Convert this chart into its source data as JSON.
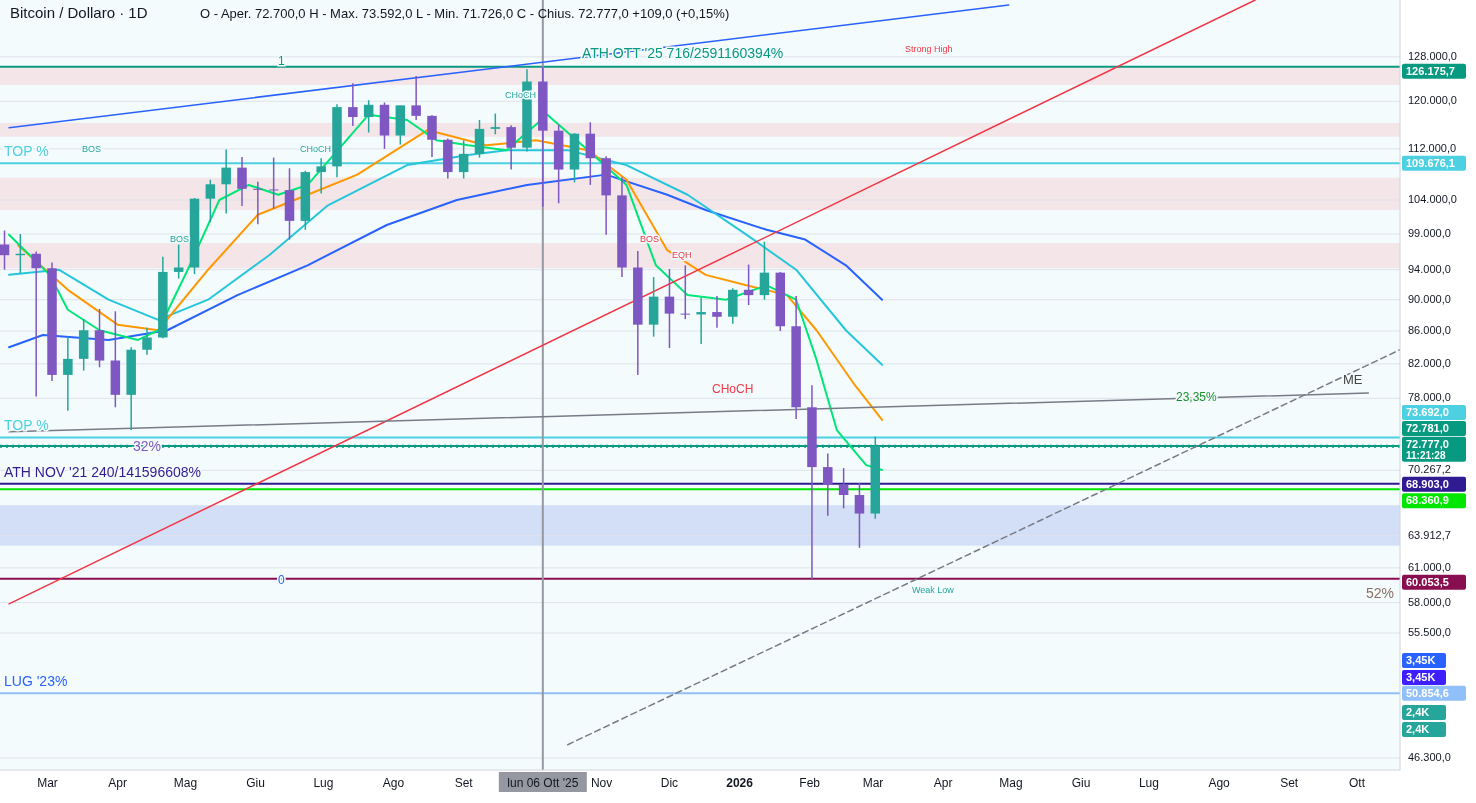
{
  "chart_data": {
    "type": "candlestick",
    "title": "Bitcoin / Dollaro · 1D",
    "subtitle": "O - Aper. 72.700,0  H - Max. 73.592,0  L - Min. 71.726,0  C - Chius. 72.777,0  +109,0 (+0,15%)",
    "x": [
      "2025-02-10",
      "2025-02-17",
      "2025-02-24",
      "2025-03-03",
      "2025-03-10",
      "2025-03-17",
      "2025-03-24",
      "2025-03-31",
      "2025-04-07",
      "2025-04-14",
      "2025-04-21",
      "2025-04-28",
      "2025-05-05",
      "2025-05-12",
      "2025-05-19",
      "2025-05-26",
      "2025-06-02",
      "2025-06-09",
      "2025-06-16",
      "2025-06-23",
      "2025-06-30",
      "2025-07-07",
      "2025-07-14",
      "2025-07-21",
      "2025-07-28",
      "2025-08-04",
      "2025-08-11",
      "2025-08-18",
      "2025-08-25",
      "2025-09-01",
      "2025-09-08",
      "2025-09-15",
      "2025-09-22",
      "2025-09-29",
      "2025-10-06",
      "2025-10-13",
      "2025-10-20",
      "2025-10-27",
      "2025-11-03",
      "2025-11-10",
      "2025-11-17",
      "2025-11-24",
      "2025-12-01",
      "2025-12-08",
      "2025-12-15",
      "2025-12-22",
      "2025-12-29",
      "2026-01-05",
      "2026-01-12",
      "2026-01-19",
      "2026-01-26",
      "2026-02-02",
      "2026-02-09",
      "2026-02-16",
      "2026-02-23",
      "2026-03-02"
    ],
    "ohlc": [
      [
        97500,
        99500,
        94000,
        96000
      ],
      [
        96000,
        99000,
        93500,
        96200
      ],
      [
        96200,
        96500,
        78200,
        94200
      ],
      [
        94200,
        95000,
        80000,
        80700
      ],
      [
        80700,
        85300,
        76600,
        82600
      ],
      [
        82600,
        87500,
        81200,
        86100
      ],
      [
        86100,
        88800,
        81600,
        82400
      ],
      [
        82400,
        88500,
        77000,
        78400
      ],
      [
        78400,
        84000,
        74500,
        83700
      ],
      [
        83700,
        86400,
        83100,
        85200
      ],
      [
        85200,
        95800,
        85100,
        93700
      ],
      [
        93700,
        97500,
        92800,
        94300
      ],
      [
        94300,
        104300,
        93400,
        104200
      ],
      [
        104200,
        107100,
        100700,
        106400
      ],
      [
        106400,
        111900,
        102000,
        109000
      ],
      [
        109000,
        110700,
        103100,
        105700
      ],
      [
        105700,
        106800,
        100400,
        105600
      ],
      [
        105600,
        110600,
        102700,
        105500
      ],
      [
        105500,
        108900,
        98200,
        100900
      ],
      [
        100900,
        108500,
        99600,
        108300
      ],
      [
        108300,
        110500,
        105000,
        109200
      ],
      [
        109200,
        119500,
        107500,
        119000
      ],
      [
        119000,
        123200,
        115800,
        117300
      ],
      [
        117300,
        120200,
        114700,
        119400
      ],
      [
        119400,
        119800,
        112000,
        114200
      ],
      [
        114200,
        119300,
        112700,
        119300
      ],
      [
        119300,
        124500,
        116800,
        117500
      ],
      [
        117500,
        117600,
        110700,
        113500
      ],
      [
        113500,
        113700,
        107300,
        108300
      ],
      [
        108300,
        113400,
        107300,
        111200
      ],
      [
        111200,
        116800,
        110600,
        115300
      ],
      [
        115300,
        117900,
        114400,
        115600
      ],
      [
        115600,
        115900,
        108700,
        112200
      ],
      [
        112200,
        125700,
        111600,
        123500
      ],
      [
        123500,
        126200,
        103000,
        115000
      ],
      [
        115000,
        116000,
        103500,
        108700
      ],
      [
        108700,
        114600,
        106700,
        114500
      ],
      [
        114500,
        116400,
        106300,
        110500
      ],
      [
        110500,
        110800,
        98900,
        104700
      ],
      [
        104700,
        107500,
        93000,
        94300
      ],
      [
        94300,
        96600,
        80700,
        86800
      ],
      [
        86800,
        93000,
        85300,
        90400
      ],
      [
        90400,
        94100,
        83900,
        88200
      ],
      [
        88200,
        94600,
        87500,
        88100
      ],
      [
        88100,
        90300,
        84400,
        88400
      ],
      [
        88400,
        90500,
        86400,
        87800
      ],
      [
        87800,
        91500,
        86900,
        91300
      ],
      [
        91300,
        94700,
        89300,
        90600
      ],
      [
        90600,
        97900,
        90000,
        93600
      ],
      [
        93600,
        93700,
        86000,
        86600
      ],
      [
        86600,
        90500,
        75700,
        77000
      ],
      [
        77000,
        79500,
        60000,
        70600
      ],
      [
        70600,
        72000,
        65800,
        68800
      ],
      [
        68800,
        70500,
        66500,
        67800
      ],
      [
        67800,
        69000,
        62800,
        66000
      ],
      [
        66000,
        73800,
        65500,
        72777
      ]
    ],
    "colors": [
      "#7e57c2",
      "#26a69a",
      "#7e57c2",
      "#7e57c2",
      "#26a69a",
      "#26a69a",
      "#7e57c2",
      "#7e57c2",
      "#26a69a",
      "#26a69a",
      "#26a69a",
      "#26a69a",
      "#26a69a",
      "#26a69a",
      "#26a69a",
      "#7e57c2",
      "#7e57c2",
      "#7e57c2",
      "#7e57c2",
      "#26a69a",
      "#26a69a",
      "#26a69a",
      "#7e57c2",
      "#26a69a",
      "#7e57c2",
      "#26a69a",
      "#7e57c2",
      "#7e57c2",
      "#7e57c2",
      "#26a69a",
      "#26a69a",
      "#26a69a",
      "#7e57c2",
      "#26a69a",
      "#7e57c2",
      "#7e57c2",
      "#26a69a",
      "#7e57c2",
      "#7e57c2",
      "#7e57c2",
      "#7e57c2",
      "#26a69a",
      "#7e57c2",
      "#7e57c2",
      "#26a69a",
      "#7e57c2",
      "#26a69a",
      "#7e57c2",
      "#26a69a",
      "#7e57c2",
      "#7e57c2",
      "#7e57c2",
      "#7e57c2",
      "#7e57c2",
      "#7e57c2",
      "#26a69a"
    ],
    "series": [
      {
        "type": "line",
        "color": "#2962ff",
        "x": [
          "2025-02-12",
          "2025-02-27",
          "2025-03-28",
          "2025-04-23",
          "2025-05-24",
          "2025-06-24",
          "2025-07-29",
          "2025-08-29",
          "2025-09-29",
          "2025-11-03",
          "2025-11-30",
          "2025-12-17",
          "2026-01-13",
          "2026-01-30",
          "2026-02-17",
          "2026-03-05"
        ],
        "values": [
          84000,
          85500,
          84900,
          86100,
          90600,
          94600,
          100300,
          104000,
          106300,
          107900,
          104800,
          102500,
          99600,
          98200,
          94600,
          90000
        ]
      },
      {
        "type": "line",
        "color": "#26c6da",
        "x": [
          "2025-02-12",
          "2025-03-06",
          "2025-03-28",
          "2025-04-19",
          "2025-05-11",
          "2025-06-07",
          "2025-07-03",
          "2025-08-07",
          "2025-09-03",
          "2025-09-20",
          "2025-10-17",
          "2025-11-12",
          "2025-12-09",
          "2026-01-04",
          "2026-01-26",
          "2026-02-17",
          "2026-03-05"
        ],
        "values": [
          93300,
          94000,
          90000,
          87400,
          90000,
          96000,
          103200,
          109400,
          111000,
          111800,
          111800,
          109400,
          104800,
          98900,
          94000,
          86100,
          81900
        ]
      },
      {
        "type": "line",
        "color": "#ff9800",
        "x": [
          "2025-02-16",
          "2025-03-10",
          "2025-04-01",
          "2025-04-19",
          "2025-05-11",
          "2025-06-02",
          "2025-06-24",
          "2025-07-16",
          "2025-08-16",
          "2025-09-11",
          "2025-10-03",
          "2025-10-26",
          "2025-11-12",
          "2025-11-30",
          "2025-12-17",
          "2026-01-04",
          "2026-01-22",
          "2026-02-04",
          "2026-02-21",
          "2026-03-05"
        ],
        "values": [
          97400,
          91300,
          86800,
          86100,
          94000,
          101800,
          104800,
          107900,
          115100,
          112600,
          113400,
          111800,
          107100,
          96700,
          93300,
          91900,
          90600,
          86100,
          79500,
          75600
        ]
      },
      {
        "type": "line",
        "color": "#00e676",
        "x": [
          "2025-02-12",
          "2025-03-02",
          "2025-03-10",
          "2025-03-24",
          "2025-04-10",
          "2025-04-19",
          "2025-05-02",
          "2025-05-16",
          "2025-05-29",
          "2025-06-11",
          "2025-06-24",
          "2025-07-21",
          "2025-08-07",
          "2025-08-20",
          "2025-09-03",
          "2025-09-20",
          "2025-10-08",
          "2025-10-26",
          "2025-11-12",
          "2025-11-25",
          "2025-12-09",
          "2025-12-26",
          "2026-01-13",
          "2026-01-26",
          "2026-02-04",
          "2026-02-13",
          "2026-02-26",
          "2026-03-05"
        ],
        "values": [
          98900,
          93300,
          88700,
          86100,
          84900,
          86100,
          94000,
          104000,
          106300,
          104800,
          106300,
          117700,
          116800,
          113400,
          112600,
          111800,
          117700,
          111800,
          106300,
          94600,
          90600,
          90000,
          91900,
          90000,
          82500,
          74500,
          70800,
          70300
        ]
      },
      {
        "type": "line",
        "color": "#2962ff",
        "x": [
          "2025-02-12",
          "2026-04-30"
        ],
        "values": [
          115500,
          138000
        ]
      },
      {
        "type": "line",
        "color": "#f23645",
        "x": [
          "2025-02-12",
          "2026-08-17"
        ],
        "values": [
          57900,
          139000
        ]
      },
      {
        "type": "line",
        "color": "#787b86",
        "x": [
          "2025-02-12",
          "2026-10-06"
        ],
        "values": [
          74300,
          78600
        ]
      },
      {
        "type": "line",
        "color": "#787b86",
        "line_style": "dashed",
        "x": [
          "2025-10-17",
          "2026-10-20"
        ],
        "values": [
          47200,
          83700
        ]
      }
    ],
    "xlim": [
      "2025-02-08",
      "2026-10-20"
    ],
    "xticks": [
      {
        "value": "2025-03-01",
        "label": "Mar"
      },
      {
        "value": "2025-04-01",
        "label": "Apr"
      },
      {
        "value": "2025-05-01",
        "label": "Mag"
      },
      {
        "value": "2025-06-01",
        "label": "Giu"
      },
      {
        "value": "2025-07-01",
        "label": "Lug"
      },
      {
        "value": "2025-08-01",
        "label": "Ago"
      },
      {
        "value": "2025-09-01",
        "label": "Set"
      },
      {
        "value": "2025-11-01",
        "label": "Nov"
      },
      {
        "value": "2025-12-01",
        "label": "Dic"
      },
      {
        "value": "2026-01-01",
        "label": "2026"
      },
      {
        "value": "2026-02-01",
        "label": "Feb"
      },
      {
        "value": "2026-03-01",
        "label": "Mar"
      },
      {
        "value": "2026-04-01",
        "label": "Apr"
      },
      {
        "value": "2026-05-01",
        "label": "Mag"
      },
      {
        "value": "2026-06-01",
        "label": "Giu"
      },
      {
        "value": "2026-07-01",
        "label": "Lug"
      },
      {
        "value": "2026-08-01",
        "label": "Ago"
      },
      {
        "value": "2026-09-01",
        "label": "Set"
      },
      {
        "value": "2026-10-01",
        "label": "Ott"
      }
    ],
    "ylim": [
      45500,
      139000
    ],
    "yticks": [
      {
        "value": 128000,
        "label": "128.000,0"
      },
      {
        "value": 120000,
        "label": "120.000,0"
      },
      {
        "value": 112000,
        "label": "112.000,0"
      },
      {
        "value": 104000,
        "label": "104.000,0"
      },
      {
        "value": 99000,
        "label": "99.000,0"
      },
      {
        "value": 94000,
        "label": "94.000,0"
      },
      {
        "value": 90000,
        "label": "90.000,0"
      },
      {
        "value": 86000,
        "label": "86.000,0"
      },
      {
        "value": 82000,
        "label": "82.000,0"
      },
      {
        "value": 78000,
        "label": "78.000,0"
      },
      {
        "value": 70267.2,
        "label": "70.267,2"
      },
      {
        "value": 63912.7,
        "label": "63.912,7"
      },
      {
        "value": 61000,
        "label": "61.000,0"
      },
      {
        "value": 58000,
        "label": "58.000,0"
      },
      {
        "value": 55500,
        "label": "55.500,0"
      },
      {
        "value": 46300,
        "label": "46.300,0"
      }
    ],
    "log": true,
    "grid": "y",
    "ref_lines": [
      {
        "axis": "y",
        "value": 126175.7,
        "label": "126.175,7",
        "color": "#089981"
      },
      {
        "axis": "y",
        "value": 109676.1,
        "label": "109.676,1",
        "color": "#4dd0e1"
      },
      {
        "axis": "y",
        "value": 73692,
        "label": "73.692,0",
        "color": "#4dd0e1"
      },
      {
        "axis": "y",
        "value": 72781,
        "label": "72.781,0",
        "color": "#089981"
      },
      {
        "axis": "y",
        "value": 72777,
        "label": "72.777,0\n11:21:28",
        "color": "#089981",
        "line_style": "dotted"
      },
      {
        "axis": "y",
        "value": 68903,
        "label": "68.903,0",
        "color": "#311b92"
      },
      {
        "axis": "y",
        "value": 68360.9,
        "label": "68.360,9",
        "color": "#00e600"
      },
      {
        "axis": "y",
        "value": 60053.5,
        "label": "60.053,5",
        "color": "#880e4f"
      },
      {
        "axis": "y",
        "value": 50854.6,
        "label": "50.854,6",
        "color": "#90bff9"
      },
      {
        "axis": "x",
        "value": "2025-10-06",
        "label": "lun 06 Ott '25",
        "color": "#9598a1"
      }
    ],
    "bands": [
      {
        "axis": "y",
        "from": 122900,
        "to": 126100,
        "color": "#f3e1e4"
      },
      {
        "axis": "y",
        "from": 114000,
        "to": 116300,
        "color": "#f3e1e4"
      },
      {
        "axis": "y",
        "from": 102500,
        "to": 107400,
        "color": "#f3e1e4"
      },
      {
        "axis": "y",
        "from": 94200,
        "to": 97700,
        "color": "#f3e1e4"
      },
      {
        "axis": "y",
        "from": 63000,
        "to": 66800,
        "color": "#cdd9f6"
      }
    ],
    "annotations": [
      "ATH  OTT '25   716/2591160394%",
      "Strong High",
      "Weak Low",
      "TOP  %",
      "TOP  %",
      "ATH  NOV '21 240/141596608%",
      "LUG  '23%",
      "32%",
      "52%",
      "23,35%",
      "ME",
      "1",
      "0",
      "CHoCH",
      "CHoCH",
      "CHoCH",
      "BOS",
      "BOS",
      "BOS",
      "EQH",
      "3,45K",
      "3,45K",
      "2,4K",
      "2,4K"
    ]
  }
}
